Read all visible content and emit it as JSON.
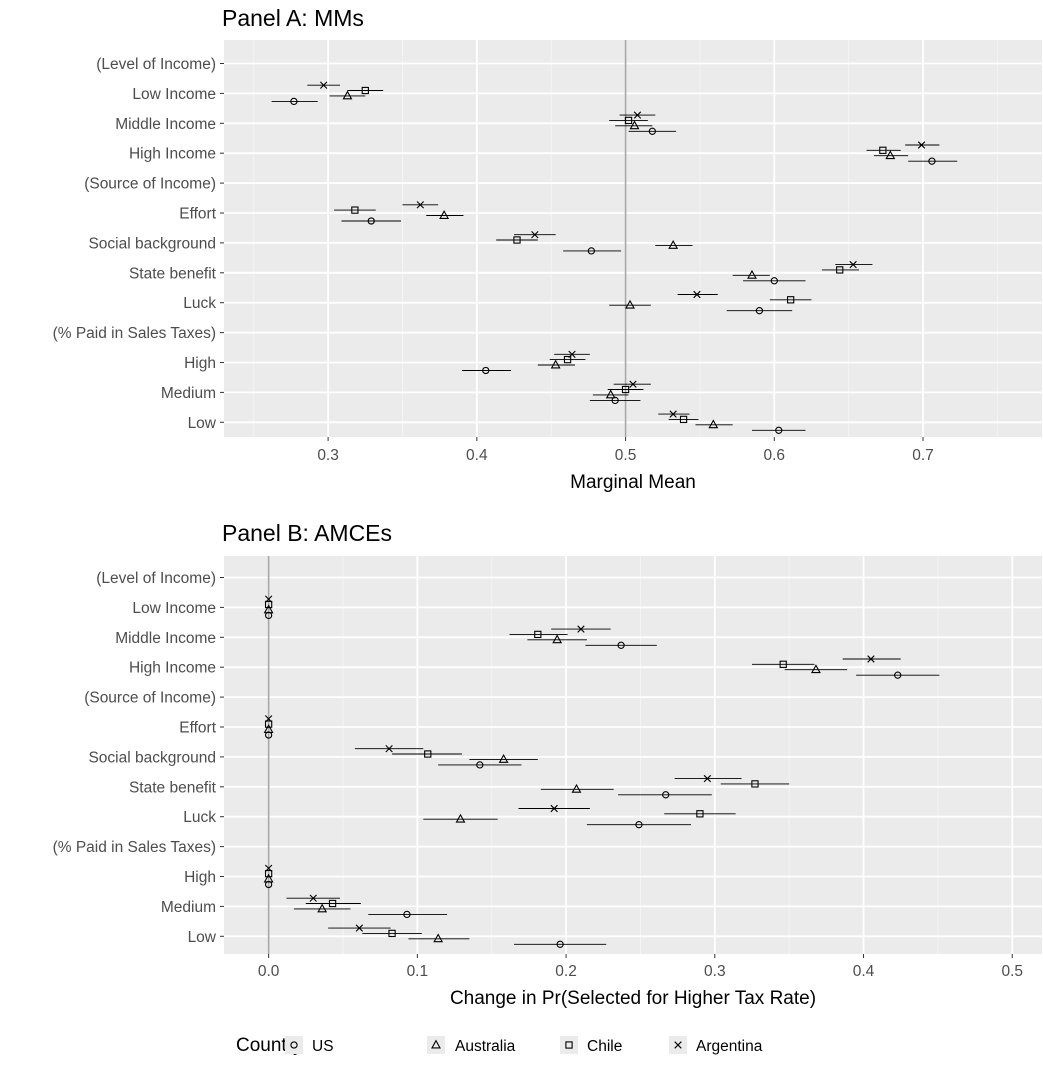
{
  "chart_data": [
    {
      "type": "scatter",
      "subtype": "dot-and-whisker",
      "title": "Panel A: MMs",
      "xlabel": "Marginal Mean",
      "ylabel": "",
      "xlim": [
        0.23,
        0.78
      ],
      "xticks": [
        "0.3",
        "0.4",
        "0.5",
        "0.6",
        "0.7"
      ],
      "xtick_values": [
        0.3,
        0.4,
        0.5,
        0.6,
        0.7
      ],
      "reference_line": 0.5,
      "grid": true,
      "categories": [
        "(Level of Income)",
        "Low Income",
        "Middle Income",
        "High Income",
        "(Source of Income)",
        "Effort",
        "Social background",
        "State benefit",
        "Luck",
        "(% Paid in Sales Taxes)",
        "High",
        "Medium",
        "Low"
      ],
      "series": [
        {
          "name": "Argentina",
          "marker": "x",
          "values": [
            null,
            0.297,
            0.508,
            0.699,
            null,
            0.362,
            0.439,
            0.653,
            0.548,
            null,
            0.464,
            0.505,
            0.532
          ],
          "lower": [
            null,
            0.286,
            0.496,
            0.688,
            null,
            0.35,
            0.425,
            0.641,
            0.535,
            null,
            0.452,
            0.492,
            0.522
          ],
          "upper": [
            null,
            0.308,
            0.52,
            0.711,
            null,
            0.374,
            0.453,
            0.666,
            0.562,
            null,
            0.476,
            0.517,
            0.543
          ]
        },
        {
          "name": "Chile",
          "marker": "square",
          "values": [
            null,
            0.325,
            0.502,
            0.673,
            null,
            0.318,
            0.427,
            0.644,
            0.611,
            null,
            0.461,
            0.5,
            0.539
          ],
          "lower": [
            null,
            0.313,
            0.489,
            0.662,
            null,
            0.304,
            0.413,
            0.632,
            0.597,
            null,
            0.449,
            0.488,
            0.529
          ],
          "upper": [
            null,
            0.337,
            0.515,
            0.685,
            null,
            0.332,
            0.441,
            0.657,
            0.625,
            null,
            0.473,
            0.512,
            0.549
          ]
        },
        {
          "name": "Australia",
          "marker": "triangle",
          "values": [
            null,
            0.313,
            0.506,
            0.678,
            null,
            0.378,
            0.532,
            0.585,
            0.503,
            null,
            0.453,
            0.49,
            0.559
          ],
          "lower": [
            null,
            0.301,
            0.493,
            0.667,
            null,
            0.366,
            0.52,
            0.572,
            0.489,
            null,
            0.441,
            0.478,
            0.547
          ],
          "upper": [
            null,
            0.325,
            0.518,
            0.69,
            null,
            0.391,
            0.545,
            0.597,
            0.517,
            null,
            0.466,
            0.502,
            0.572
          ]
        },
        {
          "name": "US",
          "marker": "circle",
          "values": [
            null,
            0.277,
            0.518,
            0.706,
            null,
            0.329,
            0.477,
            0.6,
            0.59,
            null,
            0.406,
            0.493,
            0.603
          ],
          "lower": [
            null,
            0.262,
            0.502,
            0.69,
            null,
            0.309,
            0.458,
            0.579,
            0.568,
            null,
            0.39,
            0.476,
            0.585
          ],
          "upper": [
            null,
            0.293,
            0.534,
            0.723,
            null,
            0.349,
            0.497,
            0.621,
            0.612,
            null,
            0.423,
            0.51,
            0.621
          ]
        }
      ]
    },
    {
      "type": "scatter",
      "subtype": "dot-and-whisker",
      "title": "Panel B: AMCEs",
      "xlabel": "Change in Pr(Selected for Higher Tax Rate)",
      "ylabel": "",
      "xlim": [
        -0.03,
        0.52
      ],
      "xticks": [
        "0.0",
        "0.1",
        "0.2",
        "0.3",
        "0.4",
        "0.5"
      ],
      "xtick_values": [
        0.0,
        0.1,
        0.2,
        0.3,
        0.4,
        0.5
      ],
      "reference_line": 0.0,
      "grid": true,
      "categories": [
        "(Level of Income)",
        "Low Income",
        "Middle Income",
        "High Income",
        "(Source of Income)",
        "Effort",
        "Social background",
        "State benefit",
        "Luck",
        "(% Paid in Sales Taxes)",
        "High",
        "Medium",
        "Low"
      ],
      "series": [
        {
          "name": "Argentina",
          "marker": "x",
          "values": [
            null,
            0.0,
            0.21,
            0.405,
            null,
            0.0,
            0.081,
            0.295,
            0.192,
            null,
            0.0,
            0.03,
            0.061
          ],
          "lower": [
            null,
            0.0,
            0.19,
            0.386,
            null,
            0.0,
            0.058,
            0.273,
            0.168,
            null,
            0.0,
            0.012,
            0.04
          ],
          "upper": [
            null,
            0.0,
            0.23,
            0.425,
            null,
            0.0,
            0.104,
            0.318,
            0.216,
            null,
            0.0,
            0.048,
            0.082
          ]
        },
        {
          "name": "Chile",
          "marker": "square",
          "values": [
            null,
            0.0,
            0.181,
            0.346,
            null,
            0.0,
            0.107,
            0.327,
            0.29,
            null,
            0.0,
            0.043,
            0.083
          ],
          "lower": [
            null,
            0.0,
            0.162,
            0.325,
            null,
            0.0,
            0.083,
            0.304,
            0.266,
            null,
            0.0,
            0.025,
            0.063
          ],
          "upper": [
            null,
            0.0,
            0.201,
            0.367,
            null,
            0.0,
            0.13,
            0.35,
            0.314,
            null,
            0.0,
            0.062,
            0.103
          ]
        },
        {
          "name": "Australia",
          "marker": "triangle",
          "values": [
            null,
            0.0,
            0.194,
            0.368,
            null,
            0.0,
            0.158,
            0.207,
            0.129,
            null,
            0.0,
            0.036,
            0.114
          ],
          "lower": [
            null,
            0.0,
            0.174,
            0.347,
            null,
            0.0,
            0.135,
            0.183,
            0.104,
            null,
            0.0,
            0.017,
            0.094
          ],
          "upper": [
            null,
            0.0,
            0.214,
            0.389,
            null,
            0.0,
            0.181,
            0.232,
            0.154,
            null,
            0.0,
            0.055,
            0.135
          ]
        },
        {
          "name": "US",
          "marker": "circle",
          "values": [
            null,
            0.0,
            0.237,
            0.423,
            null,
            0.0,
            0.142,
            0.267,
            0.249,
            null,
            0.0,
            0.093,
            0.196
          ],
          "lower": [
            null,
            0.0,
            0.213,
            0.395,
            null,
            0.0,
            0.114,
            0.235,
            0.214,
            null,
            0.0,
            0.067,
            0.165
          ],
          "upper": [
            null,
            0.0,
            0.261,
            0.451,
            null,
            0.0,
            0.17,
            0.298,
            0.284,
            null,
            0.0,
            0.12,
            0.227
          ]
        }
      ]
    }
  ],
  "legend": {
    "title": "Country",
    "position": "bottom",
    "items": [
      {
        "label": "US",
        "marker": "circle"
      },
      {
        "label": "Australia",
        "marker": "triangle"
      },
      {
        "label": "Chile",
        "marker": "square"
      },
      {
        "label": "Argentina",
        "marker": "x"
      }
    ]
  },
  "colors": {
    "panel_background": "#ebebeb",
    "grid": "#ffffff",
    "reference_line": "#a6a6a6",
    "marks": "#000000",
    "tick_text": "#4d4d4d"
  }
}
